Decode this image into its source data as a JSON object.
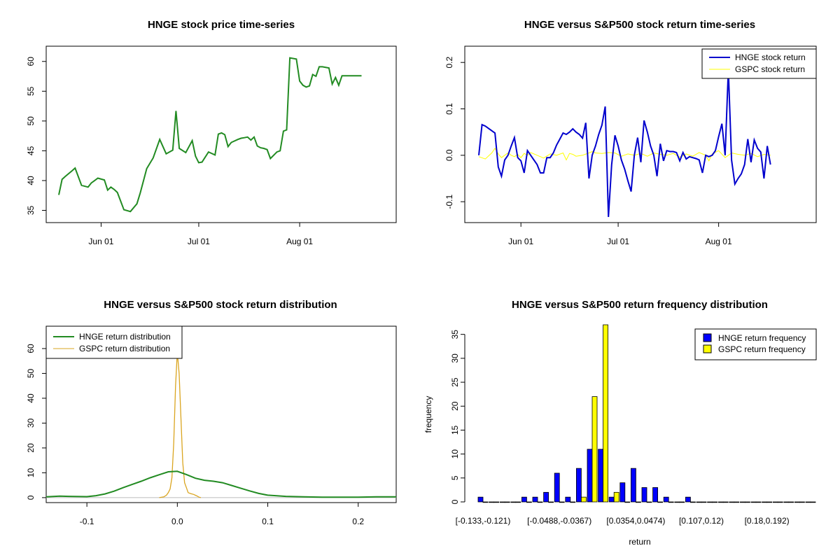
{
  "chart_data": [
    {
      "type": "line",
      "title": "HNGE stock price time-series",
      "xlabel": "",
      "ylabel": "",
      "x_tick_labels": [
        "Jun 01",
        "Jul 01",
        "Aug 01"
      ],
      "x_tick_days": [
        13,
        43,
        74
      ],
      "xlim_days": [
        0,
        100
      ],
      "yticks": [
        35,
        40,
        45,
        50,
        55,
        60
      ],
      "ylim": [
        34,
        61.5
      ],
      "colors": {
        "line": "#228B22"
      },
      "series": [
        {
          "x": [
            0,
            1,
            2,
            4,
            5,
            7,
            9,
            10,
            11,
            12,
            14,
            15,
            16,
            17,
            18,
            20,
            22,
            24,
            25,
            27,
            29,
            31,
            33,
            35,
            36,
            37,
            39,
            41,
            42,
            43,
            44,
            46,
            48,
            49,
            50,
            51,
            52,
            53,
            55,
            56,
            57,
            58,
            59,
            60,
            61,
            62,
            63,
            64,
            65,
            67,
            68,
            69,
            70,
            71,
            73,
            74,
            75,
            76,
            77,
            78,
            79,
            80,
            81,
            83,
            84,
            85,
            86,
            87,
            88,
            89,
            90,
            91,
            92,
            93
          ],
          "values": [
            37.6,
            40.2,
            40.7,
            41.6,
            42.1,
            39.2,
            38.9,
            39.6,
            40.0,
            40.4,
            40.1,
            38.4,
            38.9,
            38.5,
            38.0,
            35.1,
            34.8,
            36.1,
            37.9,
            42.0,
            43.8,
            46.9,
            44.5,
            45.1,
            51.7,
            45.4,
            44.7,
            46.7,
            44.1,
            43.0,
            43.1,
            44.8,
            44.3,
            47.8,
            48.0,
            47.7,
            45.7,
            46.4,
            46.9,
            47.1,
            47.2,
            47.3,
            46.8,
            47.3,
            45.8,
            45.5,
            45.4,
            45.2,
            43.7,
            44.8,
            45.0,
            48.3,
            48.5,
            60.6,
            60.4,
            56.7,
            56.0,
            55.7,
            55.9,
            57.8,
            57.5,
            59.1,
            59.1,
            58.9,
            56.2,
            57.3,
            56.0,
            57.6,
            57.6,
            57.6,
            57.6,
            57.6,
            57.6,
            57.6
          ]
        }
      ]
    },
    {
      "type": "line",
      "title": "HNGE versus S&P500 stock return time-series",
      "xlabel": "",
      "ylabel": "",
      "x_tick_labels": [
        "Jun 01",
        "Jul 01",
        "Aug 01"
      ],
      "x_tick_days": [
        13,
        43,
        74
      ],
      "xlim_days": [
        0,
        100
      ],
      "yticks": [
        -0.1,
        0.0,
        0.1,
        0.2
      ],
      "y_tick_labels": [
        "-0.1",
        "0.0",
        "0.1",
        "0.2"
      ],
      "ylim": [
        -0.145,
        0.235
      ],
      "legend": "top-right",
      "colors": {
        "HNGE": "#0000CD",
        "GSPC": "#FFFF00"
      },
      "series": [
        {
          "name": "HNGE stock return",
          "x": [
            0,
            1,
            2,
            3,
            5,
            6,
            7,
            8,
            9,
            10,
            11,
            12,
            13,
            14,
            15,
            16,
            17,
            18,
            19,
            20,
            21,
            22,
            23,
            24,
            25,
            26,
            27,
            28,
            29,
            30,
            31,
            32,
            33,
            34,
            35,
            36,
            37,
            38,
            39,
            40,
            41,
            42,
            43,
            44,
            45,
            46,
            47,
            48,
            49,
            50,
            51,
            52,
            53,
            54,
            55,
            56,
            57,
            58,
            59,
            60,
            61,
            62,
            63,
            64,
            65,
            66,
            67,
            68,
            69,
            70,
            71,
            72,
            73,
            74,
            75,
            76,
            77,
            78,
            79,
            80,
            81,
            82,
            83,
            84,
            85,
            86,
            87,
            88,
            89,
            90
          ],
          "values": [
            0.0,
            0.066,
            0.063,
            0.058,
            0.048,
            -0.025,
            -0.045,
            -0.01,
            0.0,
            0.02,
            0.038,
            -0.005,
            -0.012,
            -0.038,
            0.01,
            0.0,
            -0.01,
            -0.02,
            -0.038,
            -0.038,
            -0.005,
            -0.005,
            0.005,
            0.022,
            0.035,
            0.048,
            0.045,
            0.05,
            0.057,
            0.05,
            0.045,
            0.037,
            0.07,
            -0.05,
            0.0,
            0.02,
            0.045,
            0.065,
            0.105,
            -0.133,
            -0.02,
            0.043,
            0.02,
            -0.01,
            -0.03,
            -0.055,
            -0.078,
            0.0,
            0.038,
            -0.015,
            0.075,
            0.05,
            0.02,
            0.0,
            -0.045,
            0.025,
            -0.012,
            0.01,
            0.008,
            0.008,
            0.006,
            -0.012,
            0.006,
            -0.008,
            -0.003,
            -0.005,
            -0.007,
            -0.01,
            -0.038,
            0.0,
            -0.003,
            0.0,
            0.01,
            0.04,
            0.068,
            0.0,
            0.185,
            -0.01,
            -0.062,
            -0.05,
            -0.04,
            -0.02,
            0.035,
            -0.015,
            0.033,
            0.015,
            0.007,
            -0.05,
            0.02,
            -0.02
          ]
        },
        {
          "name": "GSPC stock return",
          "x": [
            0,
            2,
            4,
            5,
            6,
            7,
            8,
            9,
            10,
            11,
            12,
            13,
            14,
            15,
            16,
            18,
            20,
            22,
            24,
            26,
            27,
            28,
            29,
            30,
            32,
            34,
            35,
            36,
            38,
            40,
            42,
            44,
            46,
            48,
            50,
            52,
            54,
            56,
            58,
            60,
            62,
            64,
            66,
            68,
            70,
            71,
            72,
            74,
            76,
            78,
            80,
            82,
            84,
            86,
            88,
            90
          ],
          "values": [
            -0.003,
            -0.008,
            0.005,
            0.015,
            0.003,
            -0.005,
            0.0,
            0.005,
            0.0,
            -0.003,
            0.002,
            -0.005,
            0.004,
            0.0,
            0.006,
            0.0,
            -0.006,
            0.003,
            0.0,
            0.005,
            -0.01,
            0.004,
            0.002,
            -0.002,
            0.0,
            0.005,
            0.008,
            0.005,
            0.004,
            0.006,
            0.005,
            -0.002,
            0.003,
            0.0,
            0.004,
            -0.002,
            0.005,
            0.002,
            0.0,
            0.004,
            -0.004,
            0.003,
            -0.002,
            0.006,
            0.0,
            -0.012,
            0.003,
            0.01,
            -0.005,
            0.005,
            0.002,
            0.0,
            0.004,
            -0.003,
            0.002,
            0.0
          ]
        }
      ]
    },
    {
      "type": "line",
      "title": "HNGE versus S&P500 stock return distribution",
      "xlabel": "",
      "ylabel": "",
      "xticks": [
        -0.1,
        0.0,
        0.1,
        0.2
      ],
      "x_tick_labels": [
        "-0.1",
        "0.0",
        "0.1",
        "0.2"
      ],
      "xlim": [
        -0.145,
        0.242
      ],
      "yticks": [
        0,
        10,
        20,
        30,
        40,
        50,
        60
      ],
      "ylim": [
        -2,
        69
      ],
      "legend": "top-left",
      "colors": {
        "HNGE": "#228B22",
        "GSPC": "#DAA520"
      },
      "series": [
        {
          "name": "HNGE return distribution",
          "x": [
            -0.145,
            -0.13,
            -0.12,
            -0.1,
            -0.09,
            -0.08,
            -0.07,
            -0.06,
            -0.05,
            -0.04,
            -0.03,
            -0.02,
            -0.01,
            0.0,
            0.01,
            0.02,
            0.03,
            0.04,
            0.05,
            0.06,
            0.07,
            0.08,
            0.09,
            0.1,
            0.12,
            0.14,
            0.16,
            0.18,
            0.2,
            0.22,
            0.242
          ],
          "values": [
            0.3,
            0.6,
            0.5,
            0.4,
            0.8,
            1.5,
            2.6,
            4.0,
            5.3,
            6.6,
            8.0,
            9.2,
            10.4,
            10.6,
            9.3,
            7.8,
            7.0,
            6.6,
            6.0,
            4.9,
            3.8,
            2.7,
            1.7,
            1.0,
            0.5,
            0.3,
            0.2,
            0.2,
            0.2,
            0.3,
            0.3
          ]
        },
        {
          "name": "GSPC return distribution",
          "x": [
            -0.02,
            -0.015,
            -0.012,
            -0.01,
            -0.008,
            -0.006,
            -0.004,
            -0.002,
            0.0,
            0.002,
            0.004,
            0.006,
            0.008,
            0.01,
            0.012,
            0.015,
            0.018,
            0.021,
            0.024,
            0.026
          ],
          "values": [
            0.0,
            0.3,
            1.0,
            2.0,
            3.5,
            8.0,
            22.0,
            45.0,
            58.5,
            50.0,
            32.0,
            14.0,
            6.0,
            4.0,
            2.0,
            1.6,
            1.3,
            0.8,
            0.2,
            0.0
          ]
        }
      ]
    },
    {
      "type": "bar",
      "title": "HNGE versus S&P500 return frequency distribution",
      "xlabel": "return",
      "ylabel": "frequency",
      "category_labels_shown": [
        "[-0.133,-0.121)",
        "[-0.0488,-0.0367)",
        "[0.0354,0.0474)",
        "[0.107,0.12)",
        "[0.18,0.192)"
      ],
      "category_label_indices": [
        0,
        7,
        14,
        20,
        26
      ],
      "category_count": 31,
      "yticks": [
        0,
        5,
        10,
        15,
        20,
        25,
        30,
        35
      ],
      "ylim": [
        0,
        37
      ],
      "legend": "top-right",
      "colors": {
        "HNGE": "#0000FF",
        "GSPC": "#FFFF00"
      },
      "series": [
        {
          "name": "HNGE return frequency",
          "values": [
            1,
            0,
            0,
            0,
            1,
            1,
            2,
            6,
            1,
            7,
            11,
            11,
            1,
            4,
            7,
            3,
            3,
            1,
            0,
            1,
            0,
            0,
            0,
            0,
            0,
            0,
            0,
            0,
            0,
            0,
            0
          ]
        },
        {
          "name": "GSPC return frequency",
          "values": [
            0,
            0,
            0,
            0,
            0,
            0,
            0,
            0,
            0,
            1,
            22,
            37,
            2,
            0,
            0,
            0,
            0,
            0,
            0,
            0,
            0,
            0,
            0,
            0,
            0,
            0,
            0,
            0,
            0,
            0,
            0
          ]
        }
      ]
    }
  ]
}
